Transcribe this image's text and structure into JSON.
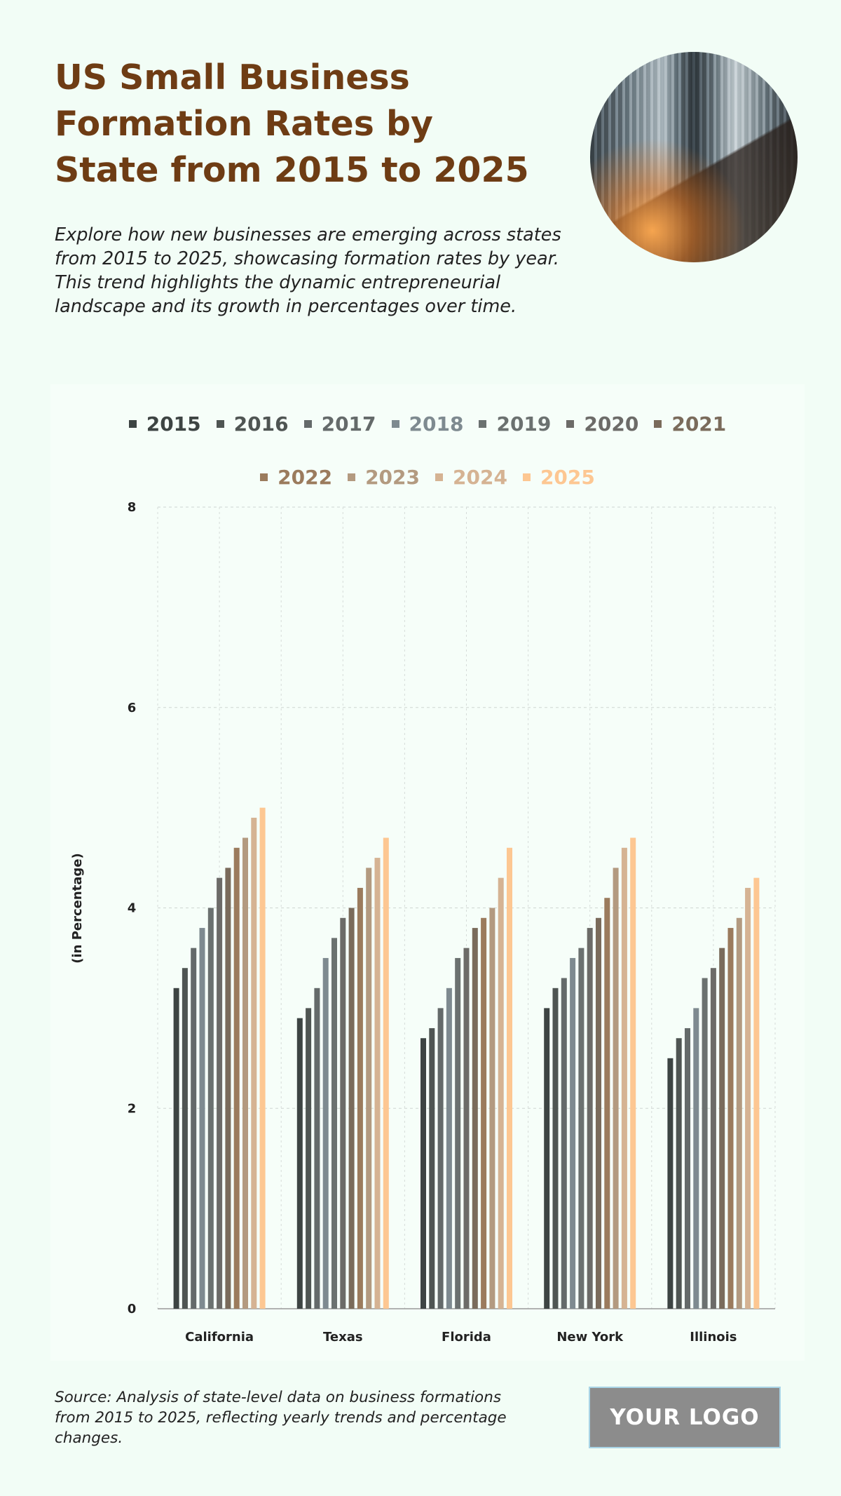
{
  "header": {
    "title": "US Small Business Formation Rates by State from 2015 to 2025",
    "description": "Explore how new businesses are emerging across states from 2015 to 2025, showcasing formation rates by year. This trend highlights the dynamic entrepreneurial landscape and its growth in percentages over time.",
    "image": "city-skyscrapers-photo"
  },
  "footer": {
    "source": "Source: Analysis of state-level data on business formations from 2015 to 2025, reflecting yearly trends and percentage changes.",
    "logo": "YOUR LOGO"
  },
  "chart_data": {
    "type": "bar",
    "title": "",
    "xlabel": "",
    "ylabel": "(in Percentage)",
    "ylim": [
      0,
      8
    ],
    "yticks": [
      "0",
      "2",
      "4",
      "6",
      "8"
    ],
    "grid": true,
    "legend_position": "top",
    "categories": [
      "California",
      "Texas",
      "Florida",
      "New York",
      "Illinois"
    ],
    "series": [
      {
        "name": "2015",
        "color": "#3d4443",
        "values": [
          3.2,
          2.9,
          2.7,
          3.0,
          2.5
        ]
      },
      {
        "name": "2016",
        "color": "#4f5553",
        "values": [
          3.4,
          3.0,
          2.8,
          3.2,
          2.7
        ]
      },
      {
        "name": "2017",
        "color": "#646a6a",
        "values": [
          3.6,
          3.2,
          3.0,
          3.3,
          2.8
        ]
      },
      {
        "name": "2018",
        "color": "#7e8a90",
        "values": [
          3.8,
          3.5,
          3.2,
          3.5,
          3.0
        ]
      },
      {
        "name": "2019",
        "color": "#6b7170",
        "values": [
          4.0,
          3.7,
          3.5,
          3.6,
          3.3
        ]
      },
      {
        "name": "2020",
        "color": "#6c6b68",
        "values": [
          4.3,
          3.9,
          3.6,
          3.8,
          3.4
        ]
      },
      {
        "name": "2021",
        "color": "#7a6b5b",
        "values": [
          4.4,
          4.0,
          3.8,
          3.9,
          3.6
        ]
      },
      {
        "name": "2022",
        "color": "#9b7b5d",
        "values": [
          4.6,
          4.2,
          3.9,
          4.1,
          3.8
        ]
      },
      {
        "name": "2023",
        "color": "#b39a80",
        "values": [
          4.7,
          4.4,
          4.0,
          4.4,
          3.9
        ]
      },
      {
        "name": "2024",
        "color": "#d5b393",
        "values": [
          4.9,
          4.5,
          4.3,
          4.6,
          4.2
        ]
      },
      {
        "name": "2025",
        "color": "#fdc792",
        "values": [
          5.0,
          4.7,
          4.6,
          4.7,
          4.3
        ]
      }
    ]
  }
}
